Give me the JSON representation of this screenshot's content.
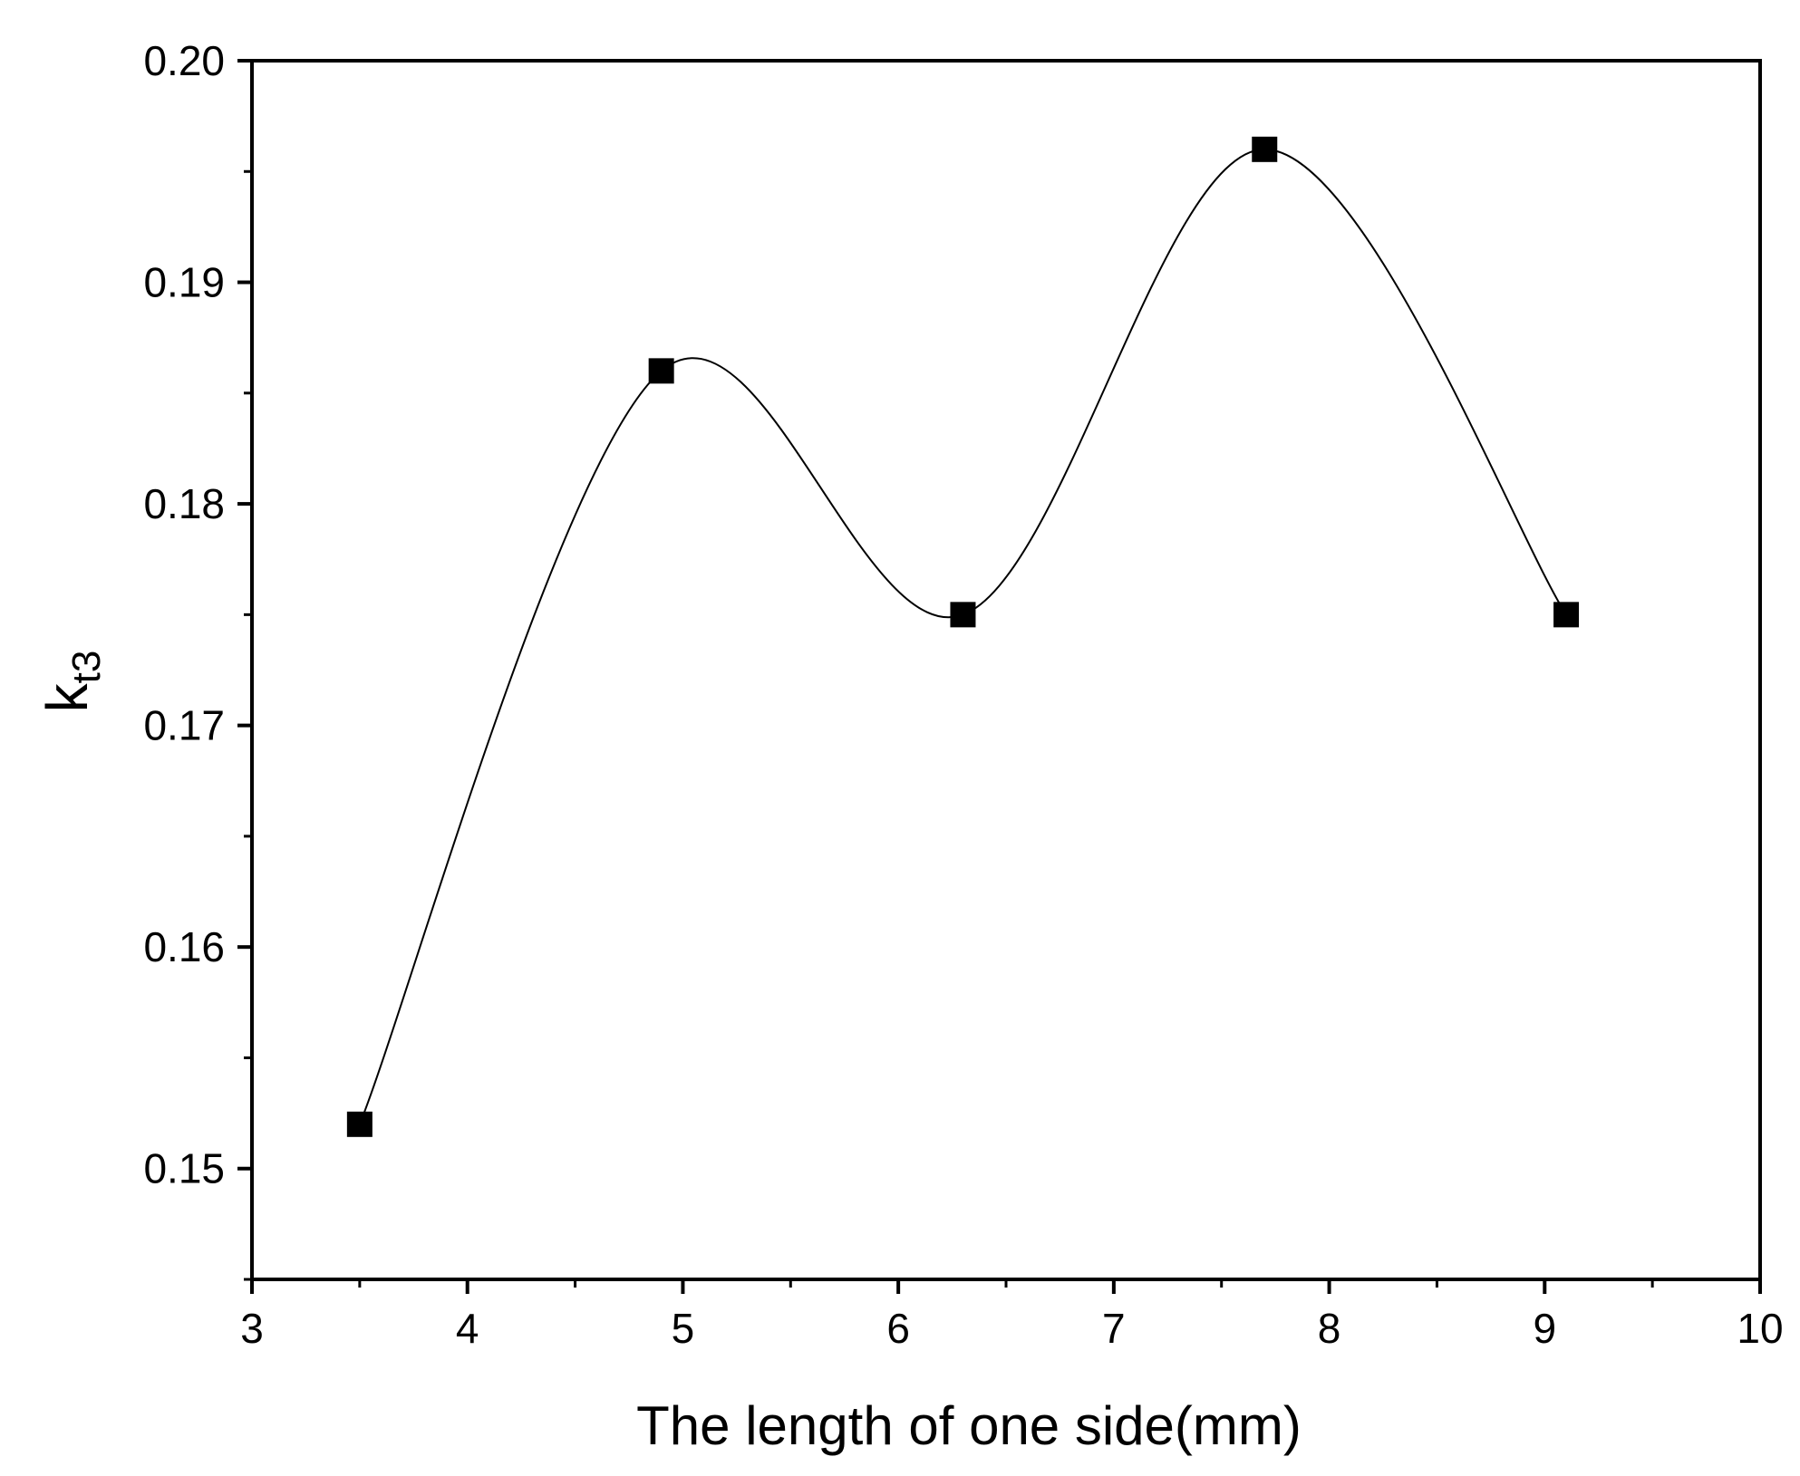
{
  "chart_data": {
    "type": "line",
    "title": "",
    "xlabel": "The length of one side(mm)",
    "ylabel": {
      "base": "k",
      "subscript": "t3"
    },
    "xlim": [
      3,
      10
    ],
    "ylim": [
      0.145,
      0.2
    ],
    "x_ticks": [
      3,
      4,
      5,
      6,
      7,
      8,
      9,
      10
    ],
    "x_tick_labels": [
      "3",
      "4",
      "5",
      "6",
      "7",
      "8",
      "9",
      "10"
    ],
    "y_ticks": [
      0.15,
      0.16,
      0.17,
      0.18,
      0.19,
      0.2
    ],
    "y_tick_labels": [
      "0.15",
      "0.16",
      "0.17",
      "0.18",
      "0.19",
      "0.20"
    ],
    "x_minor_step": 0.5,
    "y_minor_step": 0.005,
    "grid": false,
    "legend": "none",
    "curve": "spline",
    "marker": "square",
    "colors": {
      "line": "#000000",
      "marker": "#000000"
    },
    "series": [
      {
        "x": [
          3.5,
          4.9,
          6.3,
          7.7,
          9.1
        ],
        "values": [
          0.152,
          0.186,
          0.175,
          0.196,
          0.175
        ]
      }
    ]
  }
}
